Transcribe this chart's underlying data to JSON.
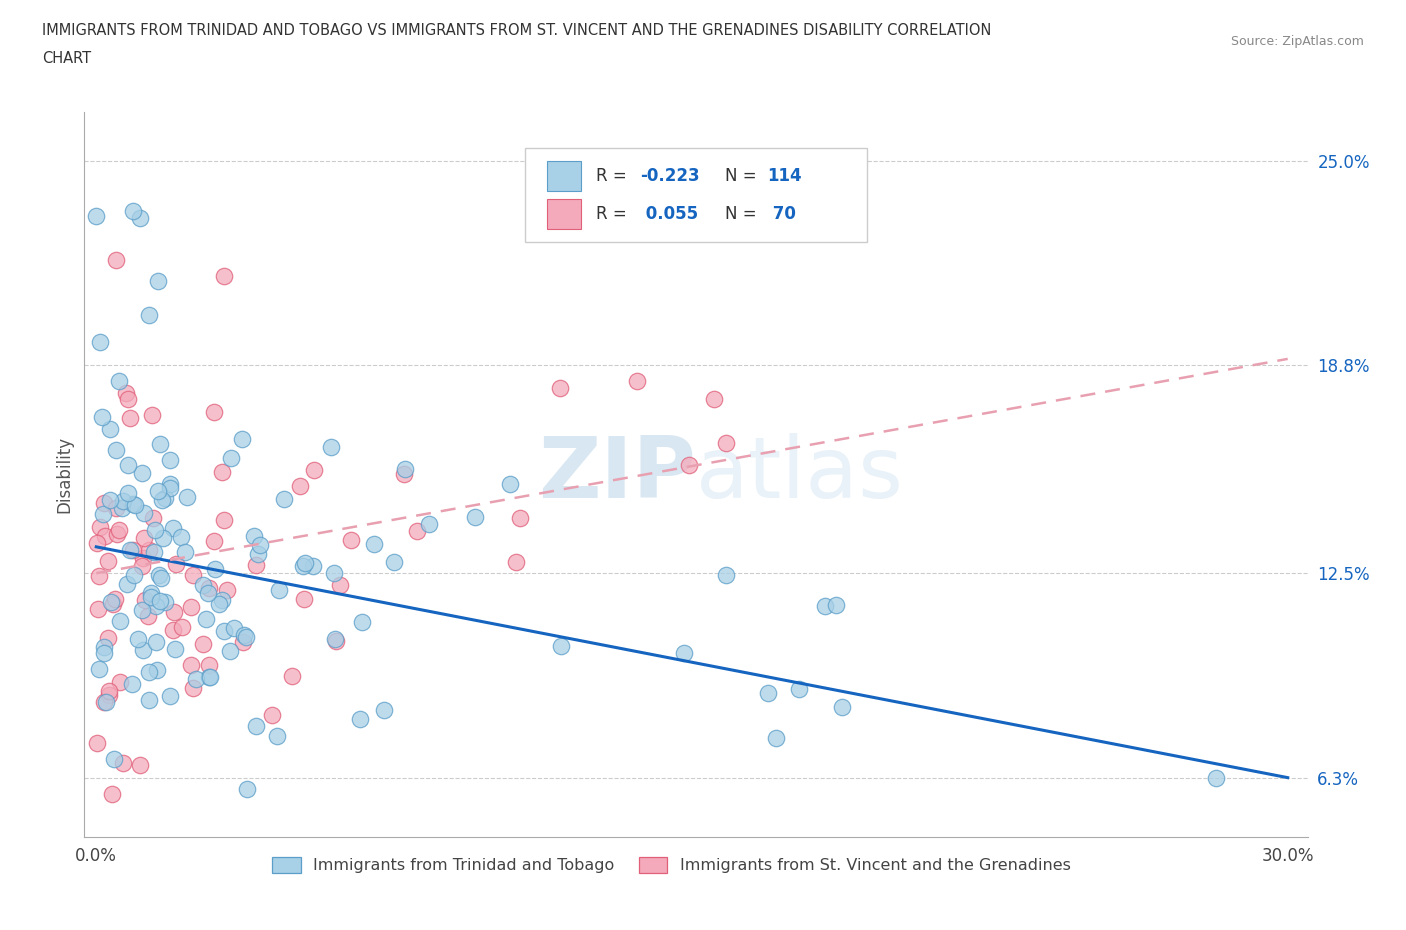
{
  "title_line1": "IMMIGRANTS FROM TRINIDAD AND TOBAGO VS IMMIGRANTS FROM ST. VINCENT AND THE GRENADINES DISABILITY CORRELATION",
  "title_line2": "CHART",
  "source_text": "Source: ZipAtlas.com",
  "ylabel": "Disability",
  "series1_label": "Immigrants from Trinidad and Tobago",
  "series2_label": "Immigrants from St. Vincent and the Grenadines",
  "series1_color": "#A8D0E6",
  "series2_color": "#F4AABB",
  "series1_edge": "#5B9EC9",
  "series2_edge": "#E0607A",
  "series1_R": -0.223,
  "series1_N": 114,
  "series2_R": 0.055,
  "series2_N": 70,
  "trend1_color": "#1565C0",
  "trend2_color": "#E8A0B0",
  "legend_R_color": "#1565C0",
  "legend_text_color": "#333333",
  "ytick_color": "#1565C0",
  "yticks": [
    0.063,
    0.125,
    0.188,
    0.25
  ],
  "ytick_labels": [
    "6.3%",
    "12.5%",
    "18.8%",
    "25.0%"
  ],
  "xlim": [
    -0.003,
    0.305
  ],
  "ylim": [
    0.045,
    0.265
  ],
  "trend1_x0": 0.0,
  "trend1_y0": 0.133,
  "trend1_x1": 0.3,
  "trend1_y1": 0.063,
  "trend2_x0": 0.0,
  "trend2_y0": 0.125,
  "trend2_x1": 0.3,
  "trend2_y1": 0.19
}
